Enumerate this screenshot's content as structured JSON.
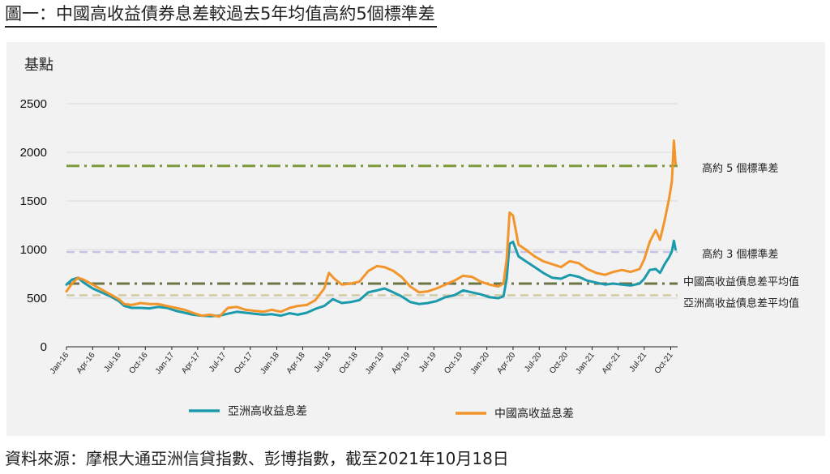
{
  "figure": {
    "title": "圖一：中國高收益債券息差較過去5年均值高約5個標準差",
    "source": "資料來源：摩根大通亞洲信貸指數、彭博指數，截至2021年10月18日"
  },
  "colors": {
    "asia": "#1a9aab",
    "china": "#f2952b",
    "sd5": "#7c9a3a",
    "sd3": "#c6c4e0",
    "china_avg": "#6d7446",
    "asia_avg": "#cfcba6",
    "grid": "#d9d9d9"
  },
  "chart_data": {
    "type": "line",
    "title": "圖一：中國高收益債券息差較過去5年均值高約5個標準差",
    "ylabel": "基點",
    "ylim": [
      0,
      2500
    ],
    "yticks": [
      0,
      500,
      1000,
      1500,
      2000,
      2500
    ],
    "grid": true,
    "legend_position": "bottom",
    "x_range": [
      "2016-01",
      "2021-10"
    ],
    "x_tick_labels": [
      "Jan-16",
      "Apr-16",
      "Jul-16",
      "Oct-16",
      "Jan-17",
      "Apr-17",
      "Jul-17",
      "Oct-17",
      "Jan-18",
      "Apr-18",
      "Jul-18",
      "Oct-18",
      "Jan-19",
      "Apr-19",
      "Jul-19",
      "Oct-19",
      "Jan-20",
      "Apr-20",
      "Jul-20",
      "Oct-20",
      "Jan-21",
      "Apr-21",
      "Jul-21",
      "Oct-21"
    ],
    "reference_lines": [
      {
        "label": "高約 5 個標準差",
        "value": 1860,
        "style": "dash-dot",
        "color_key": "sd5"
      },
      {
        "label": "高約 3 個標準差",
        "value": 975,
        "style": "dashed",
        "color_key": "sd3"
      },
      {
        "label": "中國高收益債息差平均值",
        "value": 650,
        "style": "dash-dot",
        "color_key": "china_avg"
      },
      {
        "label": "亞洲高收益債息差平均值",
        "value": 530,
        "style": "dashed",
        "color_key": "asia_avg"
      }
    ],
    "series": [
      {
        "name": "亞洲高收益息差",
        "color_key": "asia",
        "points": [
          [
            "2016-01-01",
            640
          ],
          [
            "2016-01-20",
            690
          ],
          [
            "2016-02-10",
            710
          ],
          [
            "2016-03-01",
            660
          ],
          [
            "2016-04-01",
            600
          ],
          [
            "2016-05-01",
            560
          ],
          [
            "2016-06-01",
            520
          ],
          [
            "2016-07-01",
            470
          ],
          [
            "2016-07-20",
            420
          ],
          [
            "2016-08-15",
            400
          ],
          [
            "2016-09-15",
            400
          ],
          [
            "2016-10-15",
            395
          ],
          [
            "2016-11-15",
            410
          ],
          [
            "2016-12-15",
            400
          ],
          [
            "2017-01-15",
            370
          ],
          [
            "2017-02-15",
            350
          ],
          [
            "2017-03-15",
            330
          ],
          [
            "2017-04-15",
            320
          ],
          [
            "2017-05-15",
            315
          ],
          [
            "2017-06-15",
            320
          ],
          [
            "2017-07-15",
            340
          ],
          [
            "2017-08-15",
            360
          ],
          [
            "2017-09-15",
            350
          ],
          [
            "2017-10-15",
            340
          ],
          [
            "2017-11-15",
            330
          ],
          [
            "2017-12-15",
            335
          ],
          [
            "2018-01-15",
            320
          ],
          [
            "2018-02-15",
            345
          ],
          [
            "2018-03-15",
            330
          ],
          [
            "2018-04-15",
            350
          ],
          [
            "2018-05-15",
            390
          ],
          [
            "2018-06-15",
            420
          ],
          [
            "2018-07-15",
            490
          ],
          [
            "2018-08-15",
            450
          ],
          [
            "2018-09-15",
            460
          ],
          [
            "2018-10-15",
            480
          ],
          [
            "2018-11-15",
            560
          ],
          [
            "2018-12-15",
            580
          ],
          [
            "2019-01-10",
            600
          ],
          [
            "2019-02-10",
            560
          ],
          [
            "2019-03-10",
            520
          ],
          [
            "2019-04-10",
            460
          ],
          [
            "2019-05-10",
            440
          ],
          [
            "2019-06-10",
            450
          ],
          [
            "2019-07-10",
            470
          ],
          [
            "2019-08-10",
            510
          ],
          [
            "2019-09-10",
            530
          ],
          [
            "2019-10-10",
            580
          ],
          [
            "2019-11-10",
            560
          ],
          [
            "2019-12-10",
            540
          ],
          [
            "2020-01-10",
            510
          ],
          [
            "2020-02-10",
            500
          ],
          [
            "2020-02-28",
            520
          ],
          [
            "2020-03-10",
            700
          ],
          [
            "2020-03-20",
            1060
          ],
          [
            "2020-04-01",
            1080
          ],
          [
            "2020-04-20",
            930
          ],
          [
            "2020-05-15",
            880
          ],
          [
            "2020-06-15",
            820
          ],
          [
            "2020-07-15",
            760
          ],
          [
            "2020-08-15",
            710
          ],
          [
            "2020-09-15",
            700
          ],
          [
            "2020-10-15",
            740
          ],
          [
            "2020-11-15",
            720
          ],
          [
            "2020-12-15",
            680
          ],
          [
            "2021-01-15",
            660
          ],
          [
            "2021-02-15",
            640
          ],
          [
            "2021-03-15",
            650
          ],
          [
            "2021-04-15",
            640
          ],
          [
            "2021-05-15",
            630
          ],
          [
            "2021-06-15",
            650
          ],
          [
            "2021-07-01",
            700
          ],
          [
            "2021-07-20",
            790
          ],
          [
            "2021-08-10",
            800
          ],
          [
            "2021-08-25",
            760
          ],
          [
            "2021-09-10",
            850
          ],
          [
            "2021-09-25",
            920
          ],
          [
            "2021-10-05",
            980
          ],
          [
            "2021-10-12",
            1090
          ],
          [
            "2021-10-18",
            1000
          ]
        ]
      },
      {
        "name": "中國高收益息差",
        "color_key": "china",
        "points": [
          [
            "2016-01-01",
            570
          ],
          [
            "2016-01-20",
            650
          ],
          [
            "2016-02-10",
            710
          ],
          [
            "2016-03-01",
            690
          ],
          [
            "2016-04-01",
            640
          ],
          [
            "2016-05-01",
            590
          ],
          [
            "2016-06-01",
            540
          ],
          [
            "2016-07-01",
            490
          ],
          [
            "2016-07-20",
            440
          ],
          [
            "2016-08-15",
            430
          ],
          [
            "2016-09-15",
            450
          ],
          [
            "2016-10-15",
            440
          ],
          [
            "2016-11-15",
            440
          ],
          [
            "2016-12-15",
            420
          ],
          [
            "2017-01-15",
            400
          ],
          [
            "2017-02-15",
            380
          ],
          [
            "2017-03-15",
            350
          ],
          [
            "2017-04-15",
            320
          ],
          [
            "2017-05-15",
            330
          ],
          [
            "2017-06-15",
            310
          ],
          [
            "2017-07-15",
            400
          ],
          [
            "2017-08-15",
            410
          ],
          [
            "2017-09-15",
            380
          ],
          [
            "2017-10-15",
            370
          ],
          [
            "2017-11-15",
            360
          ],
          [
            "2017-12-15",
            380
          ],
          [
            "2018-01-15",
            360
          ],
          [
            "2018-02-15",
            400
          ],
          [
            "2018-03-15",
            420
          ],
          [
            "2018-04-15",
            430
          ],
          [
            "2018-05-15",
            480
          ],
          [
            "2018-06-15",
            600
          ],
          [
            "2018-07-01",
            760
          ],
          [
            "2018-07-20",
            700
          ],
          [
            "2018-08-15",
            640
          ],
          [
            "2018-09-15",
            650
          ],
          [
            "2018-10-15",
            670
          ],
          [
            "2018-11-15",
            780
          ],
          [
            "2018-12-15",
            830
          ],
          [
            "2019-01-10",
            820
          ],
          [
            "2019-02-10",
            780
          ],
          [
            "2019-03-10",
            720
          ],
          [
            "2019-04-10",
            620
          ],
          [
            "2019-05-10",
            560
          ],
          [
            "2019-06-10",
            570
          ],
          [
            "2019-07-10",
            600
          ],
          [
            "2019-08-10",
            640
          ],
          [
            "2019-09-10",
            680
          ],
          [
            "2019-10-10",
            730
          ],
          [
            "2019-11-10",
            720
          ],
          [
            "2019-12-10",
            670
          ],
          [
            "2020-01-10",
            640
          ],
          [
            "2020-02-10",
            620
          ],
          [
            "2020-02-28",
            650
          ],
          [
            "2020-03-10",
            900
          ],
          [
            "2020-03-20",
            1380
          ],
          [
            "2020-04-01",
            1350
          ],
          [
            "2020-04-20",
            1050
          ],
          [
            "2020-05-15",
            1000
          ],
          [
            "2020-06-15",
            930
          ],
          [
            "2020-07-15",
            880
          ],
          [
            "2020-08-15",
            850
          ],
          [
            "2020-09-15",
            820
          ],
          [
            "2020-10-15",
            880
          ],
          [
            "2020-11-15",
            860
          ],
          [
            "2020-12-15",
            800
          ],
          [
            "2021-01-15",
            760
          ],
          [
            "2021-02-15",
            740
          ],
          [
            "2021-03-15",
            770
          ],
          [
            "2021-04-15",
            790
          ],
          [
            "2021-05-15",
            770
          ],
          [
            "2021-06-15",
            800
          ],
          [
            "2021-07-01",
            900
          ],
          [
            "2021-07-20",
            1080
          ],
          [
            "2021-08-10",
            1200
          ],
          [
            "2021-08-25",
            1100
          ],
          [
            "2021-09-10",
            1300
          ],
          [
            "2021-09-25",
            1520
          ],
          [
            "2021-10-05",
            1700
          ],
          [
            "2021-10-12",
            2120
          ],
          [
            "2021-10-18",
            1880
          ]
        ]
      }
    ]
  }
}
